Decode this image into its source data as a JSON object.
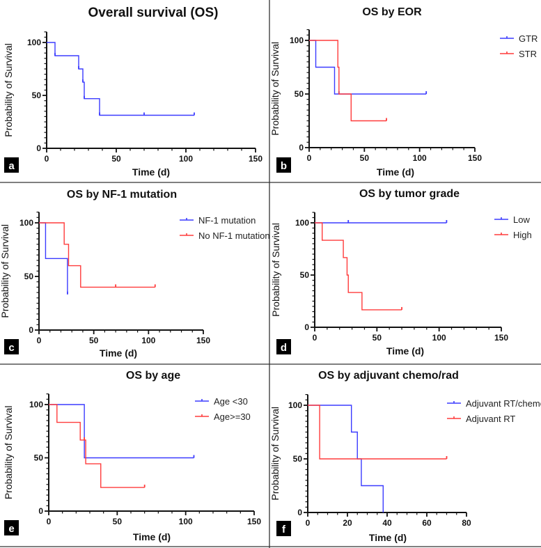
{
  "colors": {
    "blue": "#3b3bff",
    "red": "#ff3b3b",
    "axis": "#111111"
  },
  "chart_data": [
    {
      "id": "a",
      "panel_label": "a",
      "type": "line",
      "title": "Overall survival (OS)",
      "xlabel": "Time (d)",
      "ylabel": "Probability of Survival",
      "xlim": [
        0,
        150
      ],
      "ylim": [
        0,
        110
      ],
      "xticks": [
        0,
        50,
        100,
        150
      ],
      "yticks": [
        0,
        50,
        100
      ],
      "xminor": 10,
      "series": [
        {
          "name": "OS",
          "color": "blue",
          "end": 106,
          "events": [
            [
              6,
              87.5
            ],
            [
              23,
              75
            ],
            [
              26,
              62.5
            ],
            [
              27,
              46.9
            ],
            [
              38,
              31.25
            ]
          ],
          "censored": [
            6,
            23,
            26,
            27,
            38,
            70,
            106
          ]
        }
      ],
      "legend": null
    },
    {
      "id": "b",
      "panel_label": "b",
      "type": "line",
      "title": "OS by EOR",
      "xlabel": "Time (d)",
      "ylabel": "Probability of Survival",
      "xlim": [
        0,
        150
      ],
      "ylim": [
        0,
        110
      ],
      "xticks": [
        0,
        50,
        100,
        150
      ],
      "yticks": [
        0,
        50,
        100
      ],
      "xminor": 10,
      "series": [
        {
          "name": "GTR",
          "color": "blue",
          "end": 106,
          "events": [
            [
              6,
              75
            ],
            [
              23,
              50
            ]
          ],
          "censored": [
            27,
            106
          ]
        },
        {
          "name": "STR",
          "color": "red",
          "end": 70,
          "events": [
            [
              26,
              75
            ],
            [
              27,
              50
            ],
            [
              38,
              25
            ]
          ],
          "censored": [
            70
          ]
        }
      ],
      "legend": "right"
    },
    {
      "id": "c",
      "panel_label": "c",
      "type": "line",
      "title": "OS by NF-1 mutation",
      "xlabel": "Time (d)",
      "ylabel": "Probability of Survival",
      "xlim": [
        0,
        150
      ],
      "ylim": [
        0,
        110
      ],
      "xticks": [
        0,
        50,
        100,
        150
      ],
      "yticks": [
        0,
        50,
        100
      ],
      "xminor": 10,
      "series": [
        {
          "name": "NF-1 mutation",
          "color": "blue",
          "end": 26,
          "events": [
            [
              6,
              66.7
            ],
            [
              26,
              33.3
            ]
          ],
          "censored": [
            26
          ]
        },
        {
          "name": "No NF-1 mutation",
          "color": "red",
          "end": 106,
          "events": [
            [
              23,
              80
            ],
            [
              27,
              60
            ],
            [
              38,
              40
            ]
          ],
          "censored": [
            70,
            106
          ]
        }
      ],
      "legend": "right"
    },
    {
      "id": "d",
      "panel_label": "d",
      "type": "line",
      "title": "OS by tumor grade",
      "xlabel": "Time (d)",
      "ylabel": "Probability of Survival",
      "xlim": [
        0,
        150
      ],
      "ylim": [
        0,
        110
      ],
      "xticks": [
        0,
        50,
        100,
        150
      ],
      "yticks": [
        0,
        50,
        100
      ],
      "xminor": 10,
      "series": [
        {
          "name": "Low",
          "color": "blue",
          "end": 106,
          "events": [],
          "censored": [
            27,
            106
          ]
        },
        {
          "name": "High",
          "color": "red",
          "end": 70,
          "events": [
            [
              6,
              83.3
            ],
            [
              23,
              66.7
            ],
            [
              26,
              50
            ],
            [
              27,
              33.3
            ],
            [
              38,
              16.7
            ]
          ],
          "censored": [
            70
          ]
        }
      ],
      "legend": "right"
    },
    {
      "id": "e",
      "panel_label": "e",
      "type": "line",
      "title": "OS by age",
      "xlabel": "Time (d)",
      "ylabel": "Probability of Survival",
      "xlim": [
        0,
        150
      ],
      "ylim": [
        0,
        110
      ],
      "xticks": [
        0,
        50,
        100,
        150
      ],
      "yticks": [
        0,
        50,
        100
      ],
      "xminor": 10,
      "series": [
        {
          "name": "Age <30",
          "color": "blue",
          "end": 106,
          "events": [
            [
              26,
              50
            ]
          ],
          "censored": [
            106
          ]
        },
        {
          "name": "Age>=30",
          "color": "red",
          "end": 70,
          "events": [
            [
              6,
              83.3
            ],
            [
              23,
              66.7
            ],
            [
              27,
              44.4
            ],
            [
              38,
              22.2
            ]
          ],
          "censored": [
            26,
            70
          ]
        }
      ],
      "legend": "right"
    },
    {
      "id": "f",
      "panel_label": "f",
      "type": "line",
      "title": "OS by adjuvant chemo/rad",
      "xlabel": "Time (d)",
      "ylabel": "Probability of Survival",
      "xlim": [
        0,
        80
      ],
      "ylim": [
        0,
        110
      ],
      "xticks": [
        0,
        20,
        40,
        60,
        80
      ],
      "yticks": [
        0,
        50,
        100
      ],
      "xminor": 5,
      "series": [
        {
          "name": "Adjuvant RT/chemo",
          "color": "blue",
          "end": 38,
          "events": [
            [
              22,
              75
            ],
            [
              25,
              50
            ],
            [
              27,
              25
            ],
            [
              38,
              0
            ]
          ],
          "censored": []
        },
        {
          "name": "Adjuvant RT",
          "color": "red",
          "end": 70,
          "events": [
            [
              6,
              50
            ]
          ],
          "censored": [
            70
          ]
        }
      ],
      "legend": "right"
    }
  ]
}
